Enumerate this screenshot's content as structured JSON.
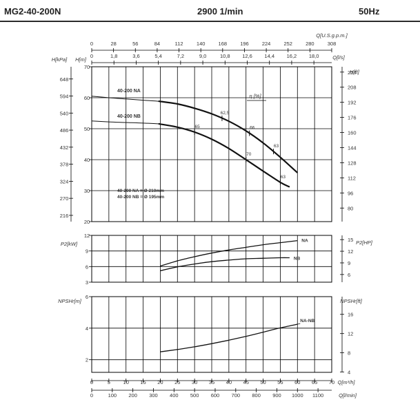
{
  "header": {
    "model": "MG2-40-200N",
    "speed": "2900 1/min",
    "frequency": "50Hz"
  },
  "colors": {
    "curve": "#111111",
    "grid": "#000000",
    "text": "#333333"
  },
  "chart_data": [
    {
      "type": "line",
      "name": "head",
      "axes": {
        "x_top": [
          {
            "label": "Q[U.S.g.p.m.]",
            "ticks": [
              "0",
              "28",
              "56",
              "84",
              "112",
              "140",
              "168",
              "196",
              "224",
              "252",
              "280",
              "308"
            ]
          },
          {
            "label": "Q[l/s]",
            "ticks": [
              "0",
              "1,8",
              "3,6",
              "5,4",
              "7,2",
              "9,0",
              "10,8",
              "12,6",
              "14,4",
              "16,2",
              "18,0"
            ]
          }
        ],
        "y_left": [
          {
            "label": "H[kPa]",
            "ticks": [
              "216",
              "270",
              "324",
              "378",
              "432",
              "486",
              "540",
              "594",
              "648"
            ]
          },
          {
            "label": "H[m]",
            "ticks": [
              "20",
              "30",
              "40",
              "50",
              "60",
              "70"
            ]
          }
        ],
        "y_right": {
          "label": "H[ft]",
          "ticks": [
            "80",
            "96",
            "112",
            "128",
            "144",
            "160",
            "176",
            "192",
            "208",
            "224"
          ]
        }
      },
      "ylim_m": [
        20,
        70
      ],
      "series": [
        {
          "name": "40-200 NA",
          "x": [
            0,
            5,
            10,
            15,
            20,
            25,
            30,
            35,
            40,
            45,
            50,
            55,
            60
          ],
          "y": [
            60.5,
            60,
            59.6,
            59.2,
            58.8,
            58.0,
            56.6,
            54.8,
            52.4,
            49.3,
            45.4,
            40.8,
            35.8
          ]
        },
        {
          "name": "40-200 NB",
          "x": [
            0,
            5,
            10,
            15,
            20,
            25,
            30,
            35,
            40,
            45,
            50,
            55,
            57.7
          ],
          "y": [
            52.5,
            52.2,
            52,
            51.8,
            51.5,
            50.5,
            48.9,
            46.6,
            43.6,
            40.0,
            36.3,
            32.7,
            31.2
          ]
        }
      ],
      "efficiency_label": "η [%]",
      "efficiency_marks": [
        {
          "label": "62,5",
          "x": 38
        },
        {
          "label": "66",
          "x": 46
        },
        {
          "label": "63",
          "x": 53
        },
        {
          "label": "65",
          "x": 30
        },
        {
          "label": "70",
          "x": 45
        },
        {
          "label": "63",
          "x": 55
        }
      ],
      "annotations": [
        "40-200 NA = Ø 210mm",
        "40-200 NB = Ø 195mm"
      ]
    },
    {
      "type": "line",
      "name": "power",
      "axes": {
        "y_left": {
          "label": "P2[kW]",
          "ticks": [
            "3",
            "6",
            "9",
            "12"
          ]
        },
        "y_right": {
          "label": "P2[HP]",
          "ticks": [
            "6",
            "9",
            "12",
            "15"
          ]
        }
      },
      "ylim": [
        3,
        12
      ],
      "series": [
        {
          "name": "NA",
          "x": [
            20,
            25,
            30,
            35,
            40,
            45,
            50,
            55,
            60
          ],
          "y": [
            6.1,
            7.1,
            7.9,
            8.6,
            9.2,
            9.7,
            10.2,
            10.6,
            11.0
          ]
        },
        {
          "name": "NB",
          "x": [
            20,
            25,
            30,
            35,
            40,
            45,
            50,
            55,
            57.7
          ],
          "y": [
            5.2,
            5.95,
            6.5,
            6.95,
            7.25,
            7.5,
            7.6,
            7.7,
            7.7
          ]
        }
      ]
    },
    {
      "type": "line",
      "name": "npsh",
      "axes": {
        "y_left": {
          "label": "NPSHr[m]",
          "ticks": [
            "2",
            "4",
            "6"
          ]
        },
        "y_right": {
          "label": "NPSHr[ft]",
          "ticks": [
            "4",
            "8",
            "12",
            "16"
          ]
        },
        "x_bottom": [
          {
            "label": "Q[m³/h]",
            "ticks": [
              "0",
              "5",
              "10",
              "15",
              "20",
              "25",
              "30",
              "35",
              "40",
              "45",
              "50",
              "55",
              "60",
              "65",
              "70"
            ]
          },
          {
            "label": "Q[l/min]",
            "ticks": [
              "0",
              "100",
              "200",
              "300",
              "400",
              "500",
              "600",
              "700",
              "800",
              "900",
              "1000",
              "1100"
            ]
          }
        ]
      },
      "ylim": [
        1.2,
        6
      ],
      "series": [
        {
          "name": "NA-NB",
          "x": [
            20,
            25,
            30,
            35,
            40,
            45,
            50,
            55,
            60
          ],
          "y": [
            2.5,
            2.65,
            2.82,
            3.02,
            3.24,
            3.48,
            3.75,
            4.02,
            4.25
          ]
        }
      ]
    }
  ]
}
